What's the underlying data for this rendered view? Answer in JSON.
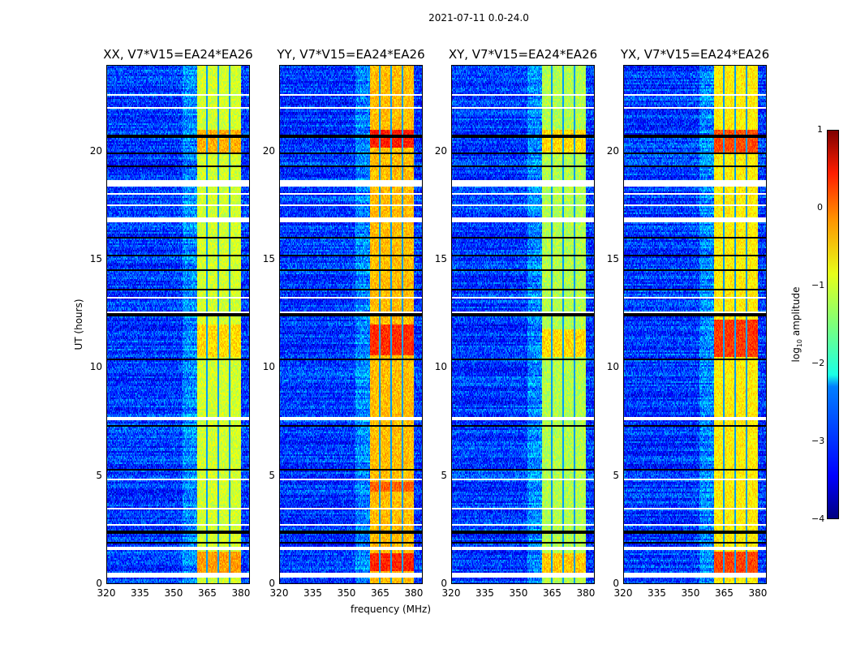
{
  "chart_data": {
    "type": "heatmap",
    "title": "2021-07-11 0.0-24.0",
    "xlabel": "frequency (MHz)",
    "ylabel": "UT (hours)",
    "xlim": [
      320,
      384
    ],
    "ylim": [
      0,
      24
    ],
    "xticks": [
      "320",
      "335",
      "350",
      "365",
      "380"
    ],
    "xtick_values": [
      320,
      335,
      350,
      365,
      380
    ],
    "yticks": [
      "0",
      "5",
      "10",
      "15",
      "20"
    ],
    "ytick_values": [
      0,
      5,
      10,
      15,
      20
    ],
    "colorbar": {
      "label_main": "log",
      "label_sub": "10",
      "label_rest": " amplitude",
      "range": [
        -4,
        1
      ],
      "ticks": [
        "1",
        "0",
        "−1",
        "−2",
        "−3",
        "−4"
      ],
      "tick_values": [
        1,
        0,
        -1,
        -2,
        -3,
        -4
      ],
      "colormap": "jet"
    },
    "background_level": -3.1,
    "band": {
      "start_mhz": 360.5,
      "end_mhz": 380,
      "gap_mhz": [
        365,
        370,
        375
      ]
    },
    "flagged_white_hours": [
      [
        0.28,
        0.52
      ],
      [
        1.6,
        1.7
      ],
      [
        2.7,
        2.78
      ],
      [
        3.45,
        3.52
      ],
      [
        4.8,
        4.85
      ],
      [
        7.55,
        7.72
      ],
      [
        9.5,
        9.56
      ],
      [
        12.5,
        12.62
      ],
      [
        13.2,
        13.25
      ],
      [
        16.75,
        16.95
      ],
      [
        17.5,
        17.55
      ],
      [
        18.0,
        18.05
      ],
      [
        18.35,
        18.65
      ],
      [
        21.5,
        21.55
      ],
      [
        22.0,
        22.05
      ],
      [
        22.6,
        22.66
      ],
      [
        23.3,
        23.35
      ]
    ],
    "flagged_black_hours": [
      1.9,
      2.4,
      5.3,
      7.3,
      10.4,
      12.45,
      13.6,
      14.5,
      15.2,
      16.0,
      19.3,
      19.9,
      20.7
    ],
    "panels": [
      {
        "title": "XX, V7*V15=EA24*EA26",
        "band_level": -1.1,
        "bright_hours": [
          [
            0.5,
            1.5,
            -0.4
          ],
          [
            10.5,
            12.0,
            -0.7
          ],
          [
            19.9,
            21.0,
            -0.5
          ]
        ]
      },
      {
        "title": "YY, V7*V15=EA24*EA26",
        "band_level": -0.55,
        "bright_hours": [
          [
            0.6,
            1.4,
            0.2
          ],
          [
            10.6,
            12.0,
            0.15
          ],
          [
            4.3,
            4.7,
            -0.1
          ],
          [
            20.2,
            21.0,
            0.25
          ]
        ]
      },
      {
        "title": "XY, V7*V15=EA24*EA26",
        "band_level": -1.25,
        "bright_hours": [
          [
            0.5,
            1.4,
            -0.6
          ],
          [
            10.5,
            11.8,
            -0.7
          ],
          [
            19.9,
            21.0,
            -0.7
          ]
        ]
      },
      {
        "title": "YX, V7*V15=EA24*EA26",
        "band_level": -0.8,
        "bright_hours": [
          [
            0.5,
            1.5,
            0.05
          ],
          [
            10.5,
            12.2,
            0.1
          ],
          [
            19.9,
            21.0,
            0.0
          ]
        ]
      }
    ]
  }
}
